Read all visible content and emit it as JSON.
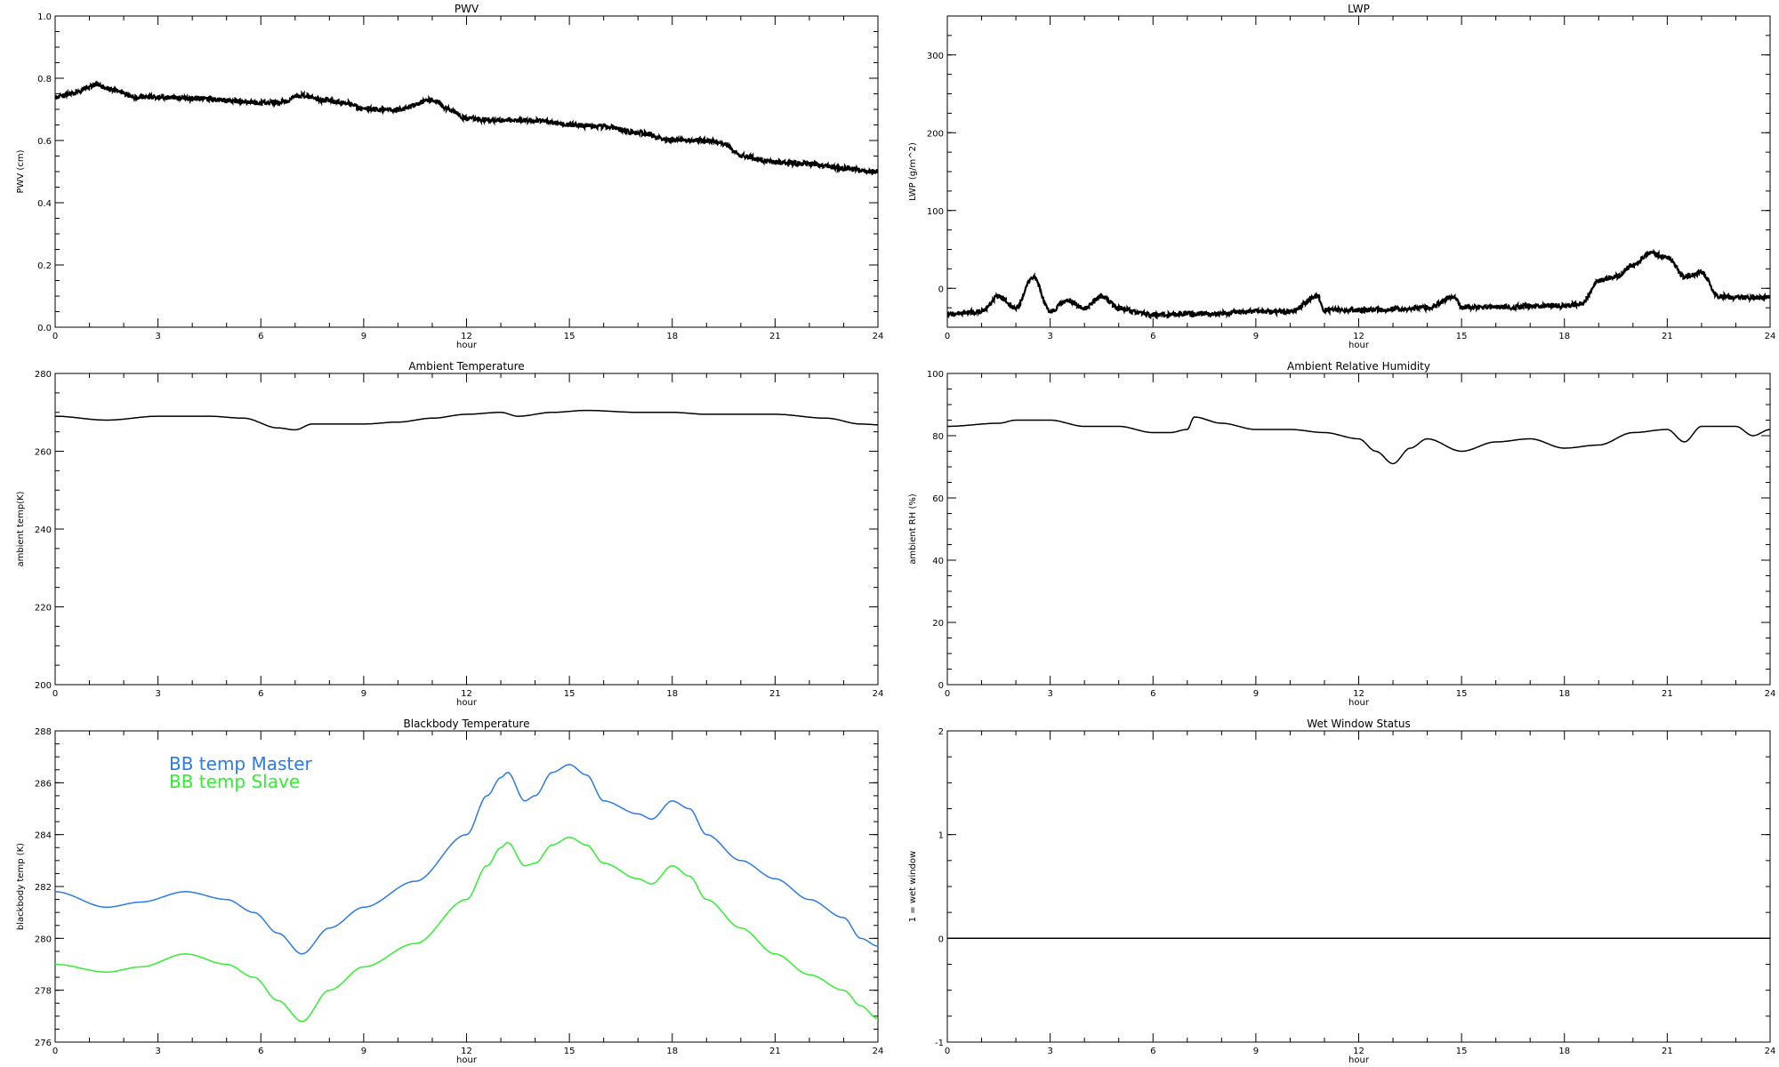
{
  "chart_data": [
    {
      "type": "line",
      "title": "PWV",
      "xlabel": "hour",
      "ylabel": "PWV (cm)",
      "xlim": [
        0,
        24
      ],
      "ylim": [
        0,
        1
      ],
      "xticks": [
        "0",
        "3",
        "6",
        "9",
        "12",
        "15",
        "18",
        "21",
        "24"
      ],
      "yticks": [
        "0.0",
        "0.2",
        "0.4",
        "0.6",
        "0.8",
        "1.0"
      ],
      "series": [
        {
          "color": "#000000",
          "noisy": true,
          "x": [
            0,
            0.5,
            1.2,
            1.8,
            2.3,
            3,
            4,
            5,
            5.5,
            6,
            6.5,
            7.2,
            7.8,
            8.5,
            9,
            10,
            11,
            11.5,
            12,
            13,
            14,
            15,
            16,
            17,
            18,
            19,
            19.5,
            20,
            21,
            22,
            23,
            24
          ],
          "values": [
            0.74,
            0.75,
            0.78,
            0.76,
            0.74,
            0.74,
            0.735,
            0.73,
            0.725,
            0.72,
            0.72,
            0.745,
            0.73,
            0.72,
            0.7,
            0.7,
            0.73,
            0.7,
            0.67,
            0.665,
            0.665,
            0.65,
            0.645,
            0.625,
            0.6,
            0.6,
            0.59,
            0.55,
            0.53,
            0.525,
            0.51,
            0.5
          ]
        }
      ]
    },
    {
      "type": "line",
      "title": "LWP",
      "xlabel": "hour",
      "ylabel": "LWP (g/m^2)",
      "xlim": [
        0,
        24
      ],
      "ylim": [
        -50,
        350
      ],
      "xticks": [
        "0",
        "3",
        "6",
        "9",
        "12",
        "15",
        "18",
        "21",
        "24"
      ],
      "yticks": [
        "0",
        "100",
        "200",
        "300"
      ],
      "series": [
        {
          "color": "#000000",
          "noisy": true,
          "x": [
            0,
            1,
            1.5,
            2,
            2.5,
            3,
            3.5,
            4,
            4.5,
            5,
            5.5,
            6,
            7,
            8,
            9,
            10,
            10.8,
            11,
            12,
            13,
            14,
            14.8,
            15,
            16,
            17,
            18,
            18.5,
            19,
            19.5,
            20,
            20.5,
            21,
            21.5,
            22,
            22.5,
            23,
            24
          ],
          "values": [
            -33,
            -30,
            -10,
            -25,
            15,
            -30,
            -15,
            -25,
            -10,
            -25,
            -30,
            -35,
            -33,
            -32,
            -30,
            -30,
            -10,
            -28,
            -28,
            -27,
            -25,
            -10,
            -25,
            -24,
            -23,
            -22,
            -20,
            10,
            15,
            30,
            45,
            40,
            15,
            20,
            -10,
            -12,
            -12
          ]
        }
      ]
    },
    {
      "type": "line",
      "title": "Ambient Temperature",
      "xlabel": "hour",
      "ylabel": "ambient temp(K)",
      "xlim": [
        0,
        24
      ],
      "ylim": [
        200,
        280
      ],
      "xticks": [
        "0",
        "3",
        "6",
        "9",
        "12",
        "15",
        "18",
        "21",
        "24"
      ],
      "yticks": [
        "200",
        "220",
        "240",
        "260",
        "280"
      ],
      "series": [
        {
          "color": "#000000",
          "x": [
            0,
            1.5,
            3,
            4.5,
            5.5,
            6.5,
            7,
            7.5,
            9,
            10,
            11,
            12,
            13,
            13.5,
            14.5,
            15.5,
            17,
            18,
            19,
            21,
            22.5,
            23.5,
            24
          ],
          "values": [
            269,
            268,
            269,
            269,
            268.5,
            266,
            265.5,
            267,
            267,
            267.5,
            268.5,
            269.5,
            270,
            269,
            270,
            270.5,
            270,
            270,
            269.5,
            269.5,
            268.5,
            267,
            266.8
          ]
        }
      ]
    },
    {
      "type": "line",
      "title": "Ambient Relative Humidity",
      "xlabel": "hour",
      "ylabel": "ambient RH (%)",
      "xlim": [
        0,
        24
      ],
      "ylim": [
        0,
        100
      ],
      "xticks": [
        "0",
        "3",
        "6",
        "9",
        "12",
        "15",
        "18",
        "21",
        "24"
      ],
      "yticks": [
        "0",
        "20",
        "40",
        "60",
        "80",
        "100"
      ],
      "series": [
        {
          "color": "#000000",
          "x": [
            0,
            1.5,
            2,
            3,
            4,
            5,
            6,
            6.5,
            7,
            7.2,
            8,
            9,
            10,
            11,
            12,
            12.5,
            13,
            13.5,
            14,
            15,
            16,
            17,
            18,
            19,
            20,
            21,
            21.5,
            22,
            23,
            23.5,
            24
          ],
          "values": [
            83,
            84,
            85,
            85,
            83,
            83,
            81,
            81,
            82,
            86,
            84,
            82,
            82,
            81,
            79,
            75,
            71,
            76,
            79,
            75,
            78,
            79,
            76,
            77,
            81,
            82,
            78,
            83,
            83,
            80,
            82
          ]
        }
      ]
    },
    {
      "type": "line",
      "title": "Blackbody Temperature",
      "xlabel": "hour",
      "ylabel": "blackbody temp (K)",
      "xlim": [
        0,
        24
      ],
      "ylim": [
        276,
        288
      ],
      "xticks": [
        "0",
        "3",
        "6",
        "9",
        "12",
        "15",
        "18",
        "21",
        "24"
      ],
      "yticks": [
        "276",
        "278",
        "280",
        "282",
        "284",
        "286",
        "288"
      ],
      "legend": "top-left",
      "series": [
        {
          "name": "BB temp Master",
          "color": "#2b7be4",
          "x": [
            0,
            1.5,
            2.5,
            3.8,
            5,
            5.8,
            6.5,
            7.2,
            8,
            9,
            10.5,
            12,
            12.6,
            13,
            13.2,
            13.7,
            14,
            14.5,
            15,
            15.5,
            16,
            17,
            17.4,
            18,
            18.5,
            19,
            20,
            21,
            22,
            23,
            23.5,
            24
          ],
          "values": [
            281.8,
            281.2,
            281.4,
            281.8,
            281.5,
            281.0,
            280.2,
            279.4,
            280.4,
            281.2,
            282.2,
            284.0,
            285.5,
            286.2,
            286.4,
            285.3,
            285.5,
            286.4,
            286.7,
            286.3,
            285.3,
            284.8,
            284.6,
            285.3,
            285.0,
            284.0,
            283.0,
            282.3,
            281.5,
            280.8,
            280.0,
            279.7
          ]
        },
        {
          "name": "BB temp Slave",
          "color": "#33ee33",
          "x": [
            0,
            1.5,
            2.5,
            3.8,
            5,
            5.8,
            6.5,
            7.2,
            8,
            9,
            10.5,
            12,
            12.6,
            13,
            13.2,
            13.7,
            14,
            14.5,
            15,
            15.5,
            16,
            17,
            17.4,
            18,
            18.5,
            19,
            20,
            21,
            22,
            23,
            23.5,
            24
          ],
          "values": [
            279.0,
            278.7,
            278.9,
            279.4,
            279.0,
            278.5,
            277.6,
            276.8,
            278.0,
            278.9,
            279.8,
            281.5,
            282.8,
            283.5,
            283.7,
            282.8,
            282.9,
            283.6,
            283.9,
            283.6,
            282.9,
            282.3,
            282.1,
            282.8,
            282.4,
            281.5,
            280.4,
            279.4,
            278.6,
            278.0,
            277.4,
            276.9
          ]
        }
      ]
    },
    {
      "type": "line",
      "title": "Wet Window Status",
      "xlabel": "hour",
      "ylabel": "1 = wet window",
      "xlim": [
        0,
        24
      ],
      "ylim": [
        -1,
        2
      ],
      "xticks": [
        "0",
        "3",
        "6",
        "9",
        "12",
        "15",
        "18",
        "21",
        "24"
      ],
      "yticks": [
        "-1",
        "0",
        "1",
        "2"
      ],
      "series": [
        {
          "color": "#000000",
          "x": [
            0,
            24
          ],
          "values": [
            0,
            0
          ]
        }
      ]
    }
  ]
}
